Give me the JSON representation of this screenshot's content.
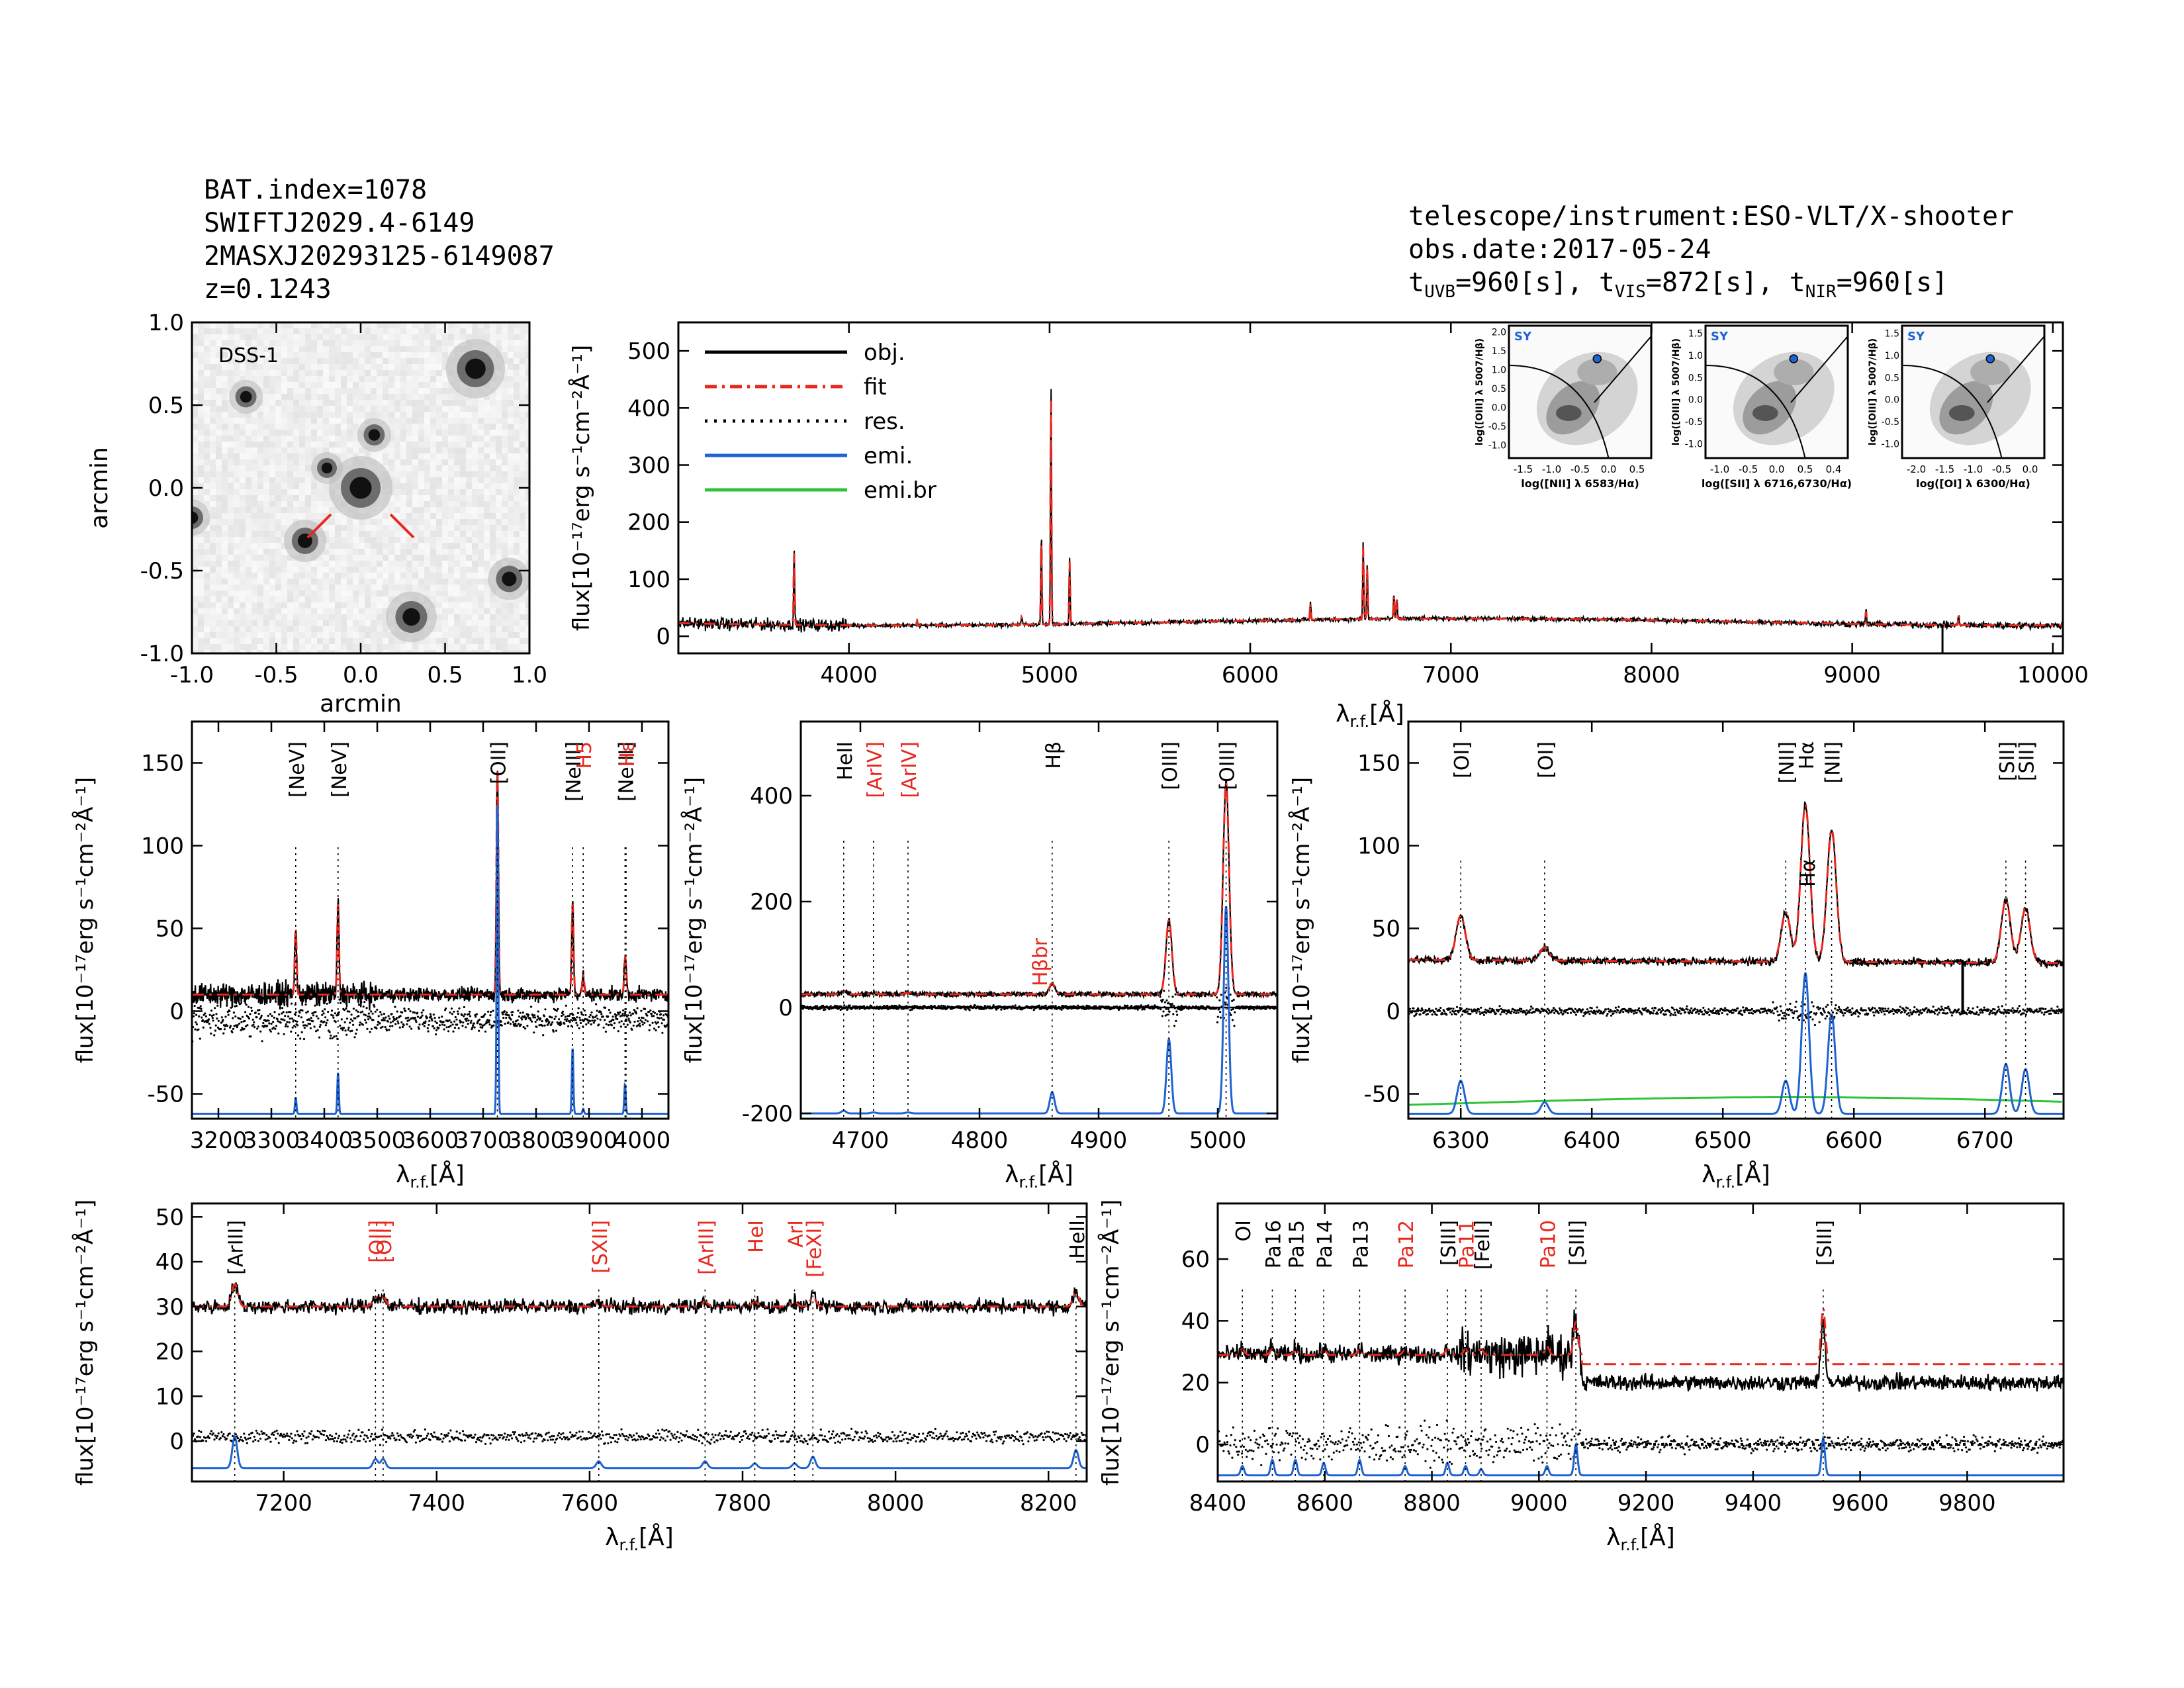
{
  "header": {
    "bat_index": "BAT.index=1078",
    "swift_name": "SWIFTJ2029.4-6149",
    "twomass_name": "2MASXJ20293125-6149087",
    "redshift": "z=0.1243",
    "telescope": "telescope/instrument:ESO-VLT/X-shooter",
    "obs_date": "obs.date:2017-05-24",
    "t_uvb": "960[s]",
    "t_vis": "872[s]",
    "t_nir": "960[s]"
  },
  "labels": {
    "flux_label": "flux[10⁻¹⁷erg s⁻¹cm⁻²Å⁻¹]",
    "lambda_label": "λ",
    "lambda_sub": "r.f.",
    "lambda_unit": "[Å]",
    "arcmin": "arcmin"
  },
  "colors": {
    "obj": "#000000",
    "fit": "#e8281e",
    "emi": "#1f63d2",
    "emi_br": "#2ec43a",
    "res": "#000000"
  },
  "chart_data": [
    {
      "id": "dss",
      "type": "image",
      "title": "DSS-1",
      "xlabel": "arcmin",
      "ylabel": "arcmin",
      "xlim": [
        -1.0,
        1.0
      ],
      "ylim": [
        -1.0,
        1.0
      ],
      "xticks": [
        "-1.0",
        "-0.5",
        "0.0",
        "0.5",
        "1.0"
      ],
      "yticks": [
        "-1.0",
        "-0.5",
        "0.0",
        "0.5",
        "1.0"
      ],
      "sources": [
        {
          "x": 0.0,
          "y": 0.0,
          "mag": 1.0
        },
        {
          "x": 0.68,
          "y": 0.72,
          "mag": 0.9
        },
        {
          "x": -0.33,
          "y": -0.32,
          "mag": 0.5
        },
        {
          "x": 0.3,
          "y": -0.78,
          "mag": 0.7
        },
        {
          "x": 0.88,
          "y": -0.55,
          "mag": 0.5
        },
        {
          "x": -0.68,
          "y": 0.55,
          "mag": 0.3
        },
        {
          "x": 0.08,
          "y": 0.32,
          "mag": 0.3
        },
        {
          "x": -0.2,
          "y": 0.12,
          "mag": 0.25
        },
        {
          "x": -1.0,
          "y": -0.18,
          "mag": 0.35
        }
      ]
    },
    {
      "id": "full",
      "type": "line",
      "xlim": [
        3150,
        10050
      ],
      "ylim": [
        -30,
        550
      ],
      "xticks": [
        4000,
        5000,
        6000,
        7000,
        8000,
        9000,
        10000
      ],
      "yticks": [
        0,
        100,
        200,
        300,
        400,
        500
      ],
      "continuum": 25,
      "legend": [
        "obj.",
        "fit",
        "res.",
        "emi.",
        "emi.br"
      ],
      "lines": [
        {
          "x": 3727,
          "peak": 135
        },
        {
          "x": 4340,
          "peak": 8
        },
        {
          "x": 4861,
          "peak": 15
        },
        {
          "x": 4959,
          "peak": 160
        },
        {
          "x": 5007,
          "peak": 420
        },
        {
          "x": 5100,
          "peak": 115
        },
        {
          "x": 6300,
          "peak": 30
        },
        {
          "x": 6563,
          "peak": 135
        },
        {
          "x": 6583,
          "peak": 95
        },
        {
          "x": 6716,
          "peak": 45
        },
        {
          "x": 6731,
          "peak": 38
        },
        {
          "x": 9069,
          "peak": 25
        },
        {
          "x": 9531,
          "peak": 20
        }
      ]
    },
    {
      "id": "bpt",
      "type": "scatter",
      "panels": [
        {
          "tag": "SY",
          "xlabel": "log([NII] λ 6583/Hα)",
          "ylabel": "log([OIII] λ 5007/Hβ)",
          "xticks": [
            "-1.5",
            "-1.0",
            "-0.5",
            "0.0",
            "0.5"
          ],
          "yticks": [
            "-1.0",
            "-0.5",
            "0.0",
            "0.5",
            "1.0",
            "1.5",
            "2.0"
          ],
          "point": [
            -0.35,
            1.3
          ]
        },
        {
          "tag": "SY",
          "xlabel": "log([SII] λ 6716,6730/Hα)",
          "ylabel": "log([OIII] λ 5007/Hβ)",
          "xticks": [
            "-1.0",
            "-0.5",
            "0.0",
            "0.5",
            "0.4"
          ],
          "yticks": [
            "-1.0",
            "-0.5",
            "0.0",
            "0.5",
            "1.0",
            "1.5"
          ],
          "point": [
            -0.25,
            1.15
          ]
        },
        {
          "tag": "SY",
          "xlabel": "log([OI] λ 6300/Hα)",
          "ylabel": "log([OIII] λ 5007/Hβ)",
          "xticks": [
            "-2.0",
            "-1.5",
            "-1.0",
            "-0.5",
            "0.0"
          ],
          "yticks": [
            "-1.0",
            "-0.5",
            "0.0",
            "0.5",
            "1.0",
            "1.5"
          ],
          "point": [
            -0.9,
            1.15
          ]
        }
      ]
    },
    {
      "id": "p1",
      "type": "line",
      "xlim": [
        3150,
        4050
      ],
      "ylim": [
        -65,
        175
      ],
      "xticks": [
        3200,
        3300,
        3400,
        3500,
        3600,
        3700,
        3800,
        3900,
        4000
      ],
      "yticks": [
        -50,
        0,
        50,
        100,
        150
      ],
      "continuum": 10,
      "emi_base": -62,
      "res_base": -5,
      "lines": [
        {
          "x": 3346,
          "peak": 40,
          "label": "[NeV]",
          "color": "black",
          "emi": 10
        },
        {
          "x": 3426,
          "peak": 55,
          "label": "[NeV]",
          "color": "black",
          "emi": 25
        },
        {
          "x": 3727,
          "peak": 138,
          "label": "[OII]",
          "color": "black",
          "emi": 190
        },
        {
          "x": 3869,
          "peak": 55,
          "label": "[NeIII]",
          "color": "black",
          "emi": 40
        },
        {
          "x": 3889,
          "peak": 12,
          "label": "H5",
          "color": "red",
          "emi": 3
        },
        {
          "x": 3968,
          "peak": 18,
          "label": "[NeIII]",
          "color": "black",
          "emi": 18
        },
        {
          "x": 3970,
          "peak": 8,
          "label": "Hε",
          "color": "red",
          "emi": 0
        }
      ]
    },
    {
      "id": "p2",
      "type": "line",
      "xlim": [
        4650,
        5050
      ],
      "ylim": [
        -210,
        540
      ],
      "xticks": [
        4700,
        4800,
        4900,
        5000
      ],
      "yticks": [
        -200,
        0,
        200,
        400
      ],
      "continuum": 25,
      "emi_base": -200,
      "res_base": 0,
      "lines": [
        {
          "x": 4686,
          "peak": 5,
          "label": "HeII",
          "color": "black",
          "emi": 5
        },
        {
          "x": 4711,
          "peak": 3,
          "label": "[ArIV]",
          "color": "red",
          "emi": 2
        },
        {
          "x": 4740,
          "peak": 3,
          "label": "[ArIV]",
          "color": "red",
          "emi": 2
        },
        {
          "x": 4861,
          "peak": 20,
          "label": "Hβ",
          "color": "black",
          "emi": 40
        },
        {
          "x": 4959,
          "peak": 140,
          "label": "[OIII]",
          "color": "black",
          "emi": 140
        },
        {
          "x": 5007,
          "peak": 400,
          "label": "[OIII]",
          "color": "black",
          "emi": 390
        }
      ],
      "extra_label": "Hβbr"
    },
    {
      "id": "p3",
      "type": "line",
      "xlim": [
        6260,
        6760
      ],
      "ylim": [
        -65,
        175
      ],
      "xticks": [
        6300,
        6400,
        6500,
        6600,
        6700
      ],
      "yticks": [
        -50,
        0,
        50,
        100,
        150
      ],
      "continuum": 31,
      "emi_base": -62,
      "res_base": 0,
      "lines": [
        {
          "x": 6300,
          "peak": 27,
          "label": "[OI]",
          "color": "black",
          "emi": 20
        },
        {
          "x": 6364,
          "peak": 8,
          "label": "[OI]",
          "color": "black",
          "emi": 7
        },
        {
          "x": 6548,
          "peak": 30,
          "label": "[NII]",
          "color": "black",
          "emi": 20
        },
        {
          "x": 6563,
          "peak": 95,
          "label": "Hα",
          "color": "black",
          "emi": 85
        },
        {
          "x": 6583,
          "peak": 80,
          "label": "[NII]",
          "color": "black",
          "emi": 60
        },
        {
          "x": 6716,
          "peak": 38,
          "label": "[SII]",
          "color": "black",
          "emi": 30
        },
        {
          "x": 6731,
          "peak": 33,
          "label": "[SII]",
          "color": "black",
          "emi": 27
        }
      ],
      "extra_label": "Hα"
    },
    {
      "id": "p4",
      "type": "line",
      "xlim": [
        7080,
        8250
      ],
      "ylim": [
        -9,
        53
      ],
      "xticks": [
        7200,
        7400,
        7600,
        7800,
        8000,
        8200
      ],
      "yticks": [
        0,
        10,
        20,
        30,
        40,
        50
      ],
      "continuum": 30,
      "emi_base": -6,
      "res_base": 1,
      "lines": [
        {
          "x": 7136,
          "peak": 5,
          "label": "[ArIII]",
          "color": "black",
          "emi": 7
        },
        {
          "x": 7320,
          "peak": 2,
          "label": "[OII]",
          "color": "red",
          "emi": 2
        },
        {
          "x": 7330,
          "peak": 2,
          "label": "[OII]",
          "color": "red",
          "emi": 2
        },
        {
          "x": 7612,
          "peak": 1,
          "label": "[SXII]",
          "color": "red",
          "emi": 1.5
        },
        {
          "x": 7751,
          "peak": 1,
          "label": "[ArIII]",
          "color": "red",
          "emi": 1.5
        },
        {
          "x": 7816,
          "peak": 1,
          "label": "HeI",
          "color": "red",
          "emi": 1
        },
        {
          "x": 7868,
          "peak": 1,
          "label": "ArI",
          "color": "red",
          "emi": 1
        },
        {
          "x": 7892,
          "peak": 2,
          "label": "[FeXI]",
          "color": "red",
          "emi": 2.5
        },
        {
          "x": 8236,
          "peak": 3,
          "label": "HeII",
          "color": "black",
          "emi": 4
        }
      ]
    },
    {
      "id": "p5",
      "type": "line",
      "xlim": [
        8400,
        9980
      ],
      "ylim": [
        -12,
        78
      ],
      "xticks": [
        8400,
        8600,
        8800,
        9000,
        9200,
        9400,
        9600,
        9800
      ],
      "yticks": [
        0,
        20,
        40,
        60
      ],
      "continuum": 29,
      "emi_base": -10,
      "res_base": 0,
      "lines": [
        {
          "x": 8446,
          "peak": 2,
          "label": "OI",
          "color": "black",
          "emi": 3
        },
        {
          "x": 8502,
          "peak": 2,
          "label": "Pa16",
          "color": "black",
          "emi": 5
        },
        {
          "x": 8545,
          "peak": 2,
          "label": "Pa15",
          "color": "black",
          "emi": 5
        },
        {
          "x": 8598,
          "peak": 2,
          "label": "Pa14",
          "color": "black",
          "emi": 4
        },
        {
          "x": 8665,
          "peak": 2,
          "label": "Pa13",
          "color": "black",
          "emi": 5
        },
        {
          "x": 8750,
          "peak": 2,
          "label": "Pa12",
          "color": "red",
          "emi": 3
        },
        {
          "x": 8829,
          "peak": 2,
          "label": "[SIII]",
          "color": "black",
          "emi": 4
        },
        {
          "x": 8863,
          "peak": 2,
          "label": "Pa11",
          "color": "red",
          "emi": 3
        },
        {
          "x": 8892,
          "peak": 2,
          "label": "[FeII]",
          "color": "black",
          "emi": 2
        },
        {
          "x": 9015,
          "peak": 3,
          "label": "Pa10",
          "color": "red",
          "emi": 3
        },
        {
          "x": 9069,
          "peak": 12,
          "label": "[SIII]",
          "color": "black",
          "emi": 10
        },
        {
          "x": 9531,
          "peak": 20,
          "label": "[SIII]",
          "color": "black",
          "emi": 12
        }
      ]
    }
  ]
}
